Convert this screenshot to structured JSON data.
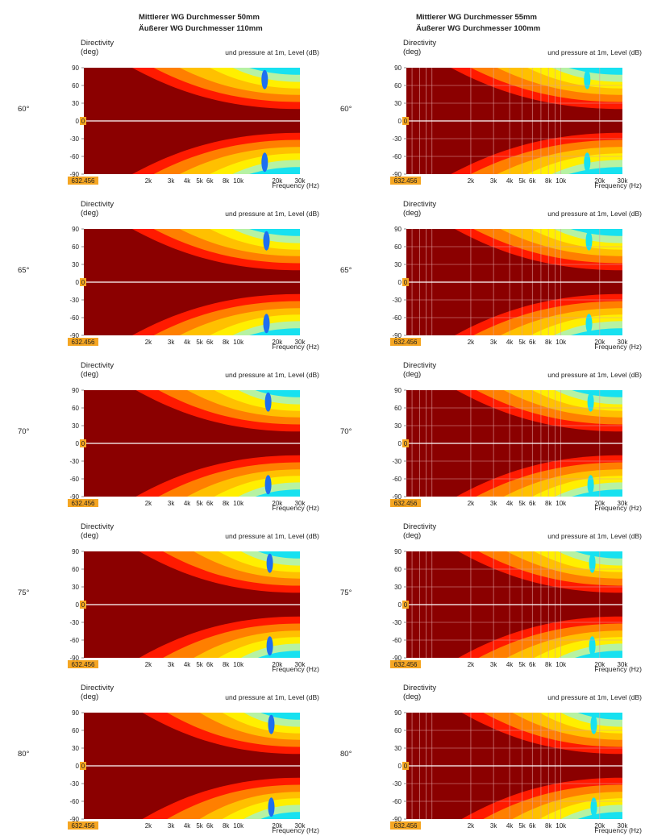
{
  "columns": [
    {
      "title_line1": "Mittlerer WG Durchmesser 50mm",
      "title_line2": "Äußerer WG Durchmesser 110mm",
      "grid": false
    },
    {
      "title_line1": "Mittlerer WG Durchmesser 55mm",
      "title_line2": "Äußerer WG Durchmesser 100mm",
      "grid": true
    }
  ],
  "rows": [
    {
      "angle": "60°"
    },
    {
      "angle": "65°"
    },
    {
      "angle": "70°"
    },
    {
      "angle": "75°"
    },
    {
      "angle": "80°"
    }
  ],
  "panel_text": {
    "title": "Directivity",
    "unit": "(deg)",
    "colorbar_label": "und pressure at 1m, Level  (dB)",
    "xlabel": "Frequency  (Hz)",
    "cursor_x": "632.456",
    "cursor_y": "0"
  },
  "colors": {
    "darkred": "#8b0000",
    "red": "#ff1a00",
    "orange": "#ff7f00",
    "lightorange": "#ffc000",
    "yellow": "#ffef00",
    "lightgreen": "#b6f2a3",
    "green": "#6fefb0",
    "cyan": "#17e1f0",
    "blue": "#1d6ff0",
    "navy": "#1a2fc0",
    "cursor_box": "#f5a623",
    "background": "#ffffff"
  },
  "chart_data": {
    "type": "heatmap",
    "panels": 10,
    "xlabel": "Frequency  (Hz)",
    "ylabel": "Directivity (deg)",
    "x_scale": "log",
    "xlim": [
      632.456,
      30000
    ],
    "ylim": [
      -90,
      90
    ],
    "x_ticks": [
      2000,
      3000,
      4000,
      5000,
      6000,
      8000,
      10000,
      20000,
      30000
    ],
    "x_tick_labels": [
      "2k",
      "3k",
      "4k",
      "5k",
      "6k",
      "8k",
      "10k",
      "20k",
      "30k"
    ],
    "y_ticks": [
      90,
      60,
      30,
      0,
      -30,
      -60,
      -90
    ],
    "y_tick_labels": [
      "90",
      "60",
      "30",
      "0",
      "-30",
      "-60",
      "-90"
    ],
    "colorbar_label": "und pressure at 1m, Level  (dB)",
    "contour_bands": [
      "darkred",
      "red",
      "orange",
      "lightorange",
      "yellow",
      "lightgreen",
      "cyan"
    ],
    "beamwidth_onset_hz": {
      "left_column": [
        [
          1500,
          2200,
          3500,
          6000,
          9000
        ],
        [
          1500,
          2200,
          3500,
          6000,
          9000
        ],
        [
          1600,
          2400,
          4000,
          6500,
          10000
        ],
        [
          1700,
          2600,
          4500,
          7000,
          10500
        ],
        [
          1800,
          2800,
          5000,
          7500,
          11000
        ]
      ],
      "right_column": [
        [
          1400,
          2000,
          3200,
          5500,
          8500
        ],
        [
          1500,
          2100,
          3400,
          5800,
          8800
        ],
        [
          1550,
          2200,
          3600,
          6000,
          9000
        ],
        [
          1600,
          2300,
          3800,
          6200,
          9500
        ],
        [
          1700,
          2500,
          4200,
          6800,
          10000
        ]
      ]
    }
  }
}
